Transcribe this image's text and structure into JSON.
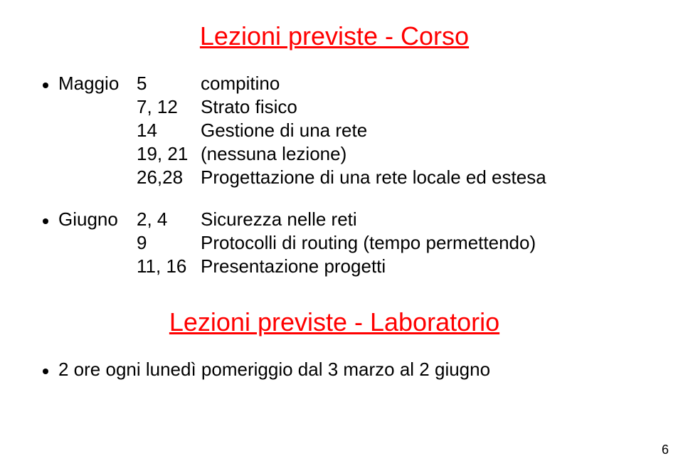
{
  "typography": {
    "title_color": "#ff0000",
    "title_fontsize": 36,
    "body_fontsize": 26,
    "body_color": "#000000",
    "pagenum_fontsize": 18,
    "background_color": "#ffffff"
  },
  "title1": "Lezioni previste - Corso",
  "title2": "Lezioni previste - Laboratorio",
  "section1": [
    {
      "month": "Maggio",
      "entries": [
        {
          "date": "5",
          "desc": "compitino"
        },
        {
          "date": "7, 12",
          "desc": "Strato fisico"
        },
        {
          "date": "14",
          "desc": "Gestione di una rete"
        },
        {
          "date": "19, 21",
          "desc": "(nessuna lezione)"
        },
        {
          "date": "26,28",
          "desc": "Progettazione di una rete locale ed estesa"
        }
      ]
    },
    {
      "month": "Giugno",
      "entries": [
        {
          "date": "2, 4",
          "desc": "Sicurezza nelle reti"
        },
        {
          "date": "9",
          "desc": "Protocolli di routing (tempo permettendo)"
        },
        {
          "date": "11, 16",
          "desc": "Presentazione progetti"
        }
      ]
    }
  ],
  "section2": {
    "text": "2 ore ogni lunedì pomeriggio dal 3 marzo al 2 giugno"
  },
  "page_number": "6"
}
